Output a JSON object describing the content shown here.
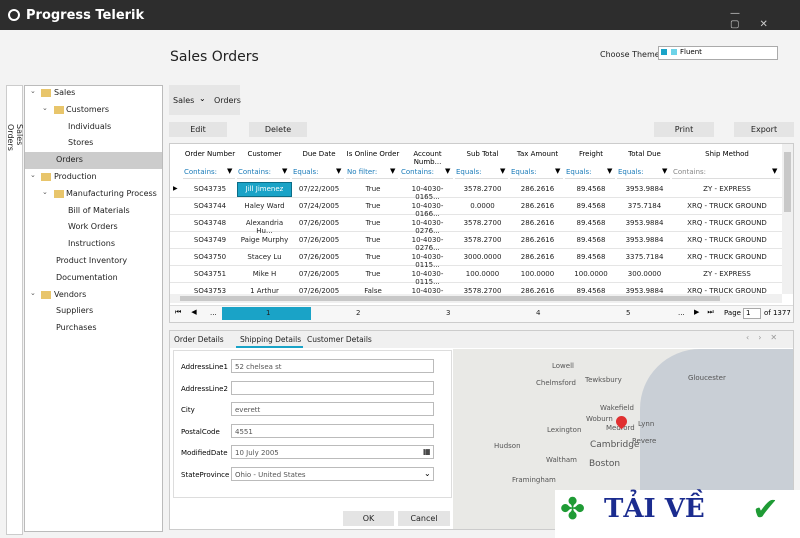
{
  "titlebar": {
    "brand": "Progress Telerik"
  },
  "side_tab": "Sales Orders",
  "tree": [
    "Sales",
    "Customers",
    "Individuals",
    "Stores",
    "Orders",
    "Production",
    "Manufacturing Process",
    "Bill of Materials",
    "Work Orders",
    "Instructions",
    "Product Inventory",
    "Documentation",
    "Vendors",
    "Suppliers",
    "Purchases"
  ],
  "header": {
    "title": "Sales Orders",
    "theme_label": "Choose Theme:",
    "theme": "Fluent"
  },
  "breadcrumb": [
    "Sales",
    "Orders"
  ],
  "toolbar": [
    "Edit",
    "Delete",
    "Print",
    "Export"
  ],
  "table": {
    "columns": [
      "Order Number",
      "Customer",
      "Due Date",
      "Is Online Order",
      "Account Numb...",
      "Sub Total",
      "Tax Amount",
      "Freight",
      "Total Due",
      "Ship Method"
    ],
    "filters": [
      "Contains:",
      "Contains:",
      "Equals:",
      "No filter:",
      "Contains:",
      "Equals:",
      "Equals:",
      "Equals:",
      "Equals:",
      "Contains:"
    ],
    "rows": [
      [
        "SO43735",
        "Jill Jimenez",
        "07/22/2005",
        "True",
        "10-4030-0165...",
        "3578.2700",
        "286.2616",
        "89.4568",
        "3953.9884",
        "ZY - EXPRESS"
      ],
      [
        "SO43744",
        "Haley Ward",
        "07/24/2005",
        "True",
        "10-4030-0166...",
        "0.0000",
        "286.2616",
        "89.4568",
        "375.7184",
        "XRQ - TRUCK GROUND"
      ],
      [
        "SO43748",
        "Alexandria Hu...",
        "07/26/2005",
        "True",
        "10-4030-0276...",
        "3578.2700",
        "286.2616",
        "89.4568",
        "3953.9884",
        "XRQ - TRUCK GROUND"
      ],
      [
        "SO43749",
        "Paige Murphy",
        "07/26/2005",
        "True",
        "10-4030-0276...",
        "3578.2700",
        "286.2616",
        "89.4568",
        "3953.9884",
        "XRQ - TRUCK GROUND"
      ],
      [
        "SO43750",
        "Stacey Lu",
        "07/26/2005",
        "True",
        "10-4030-0115...",
        "3000.0000",
        "286.2616",
        "89.4568",
        "3375.7184",
        "XRQ - TRUCK GROUND"
      ],
      [
        "SO43751",
        "Mike H",
        "07/26/2005",
        "True",
        "10-4030-0115...",
        "100.0000",
        "100.0000",
        "100.0000",
        "300.0000",
        "ZY - EXPRESS"
      ],
      [
        "SO43753",
        "1 Arthur",
        "07/26/2005",
        "False",
        "10-4030-0164...",
        "3578.2700",
        "286.2616",
        "89.4568",
        "3953.9884",
        "XRQ - TRUCK GROUND"
      ]
    ]
  },
  "pager": {
    "ellipsis": "...",
    "pages": [
      "1",
      "2",
      "3",
      "4",
      "5"
    ],
    "page_label": "Page",
    "page": "1",
    "of": "of 1377"
  },
  "tabs": [
    "Order Details",
    "Shipping Details",
    "Customer Details"
  ],
  "form": [
    {
      "label": "AddressLine1",
      "value": "52 chelsea st"
    },
    {
      "label": "AddressLine2"
    },
    {
      "label": "City",
      "value": "everett"
    },
    {
      "label": "PostalCode",
      "value": "4551"
    },
    {
      "label": "ModifiedDate",
      "value": "10 July 2005"
    },
    {
      "label": "StateProvince",
      "value": "Ohio - United States"
    }
  ],
  "dialog_buttons": [
    "OK",
    "Cancel"
  ],
  "map_labels": [
    "Lowell",
    "Tewksbury",
    "Gloucester",
    "Chelmsford",
    "Wakefield",
    "Woburn",
    "Lynn",
    "Medford",
    "Lexington",
    "Cambridge",
    "Revere",
    "Hudson",
    "Waltham",
    "Boston",
    "Framingham"
  ],
  "watermark": "TẢI VỀ"
}
